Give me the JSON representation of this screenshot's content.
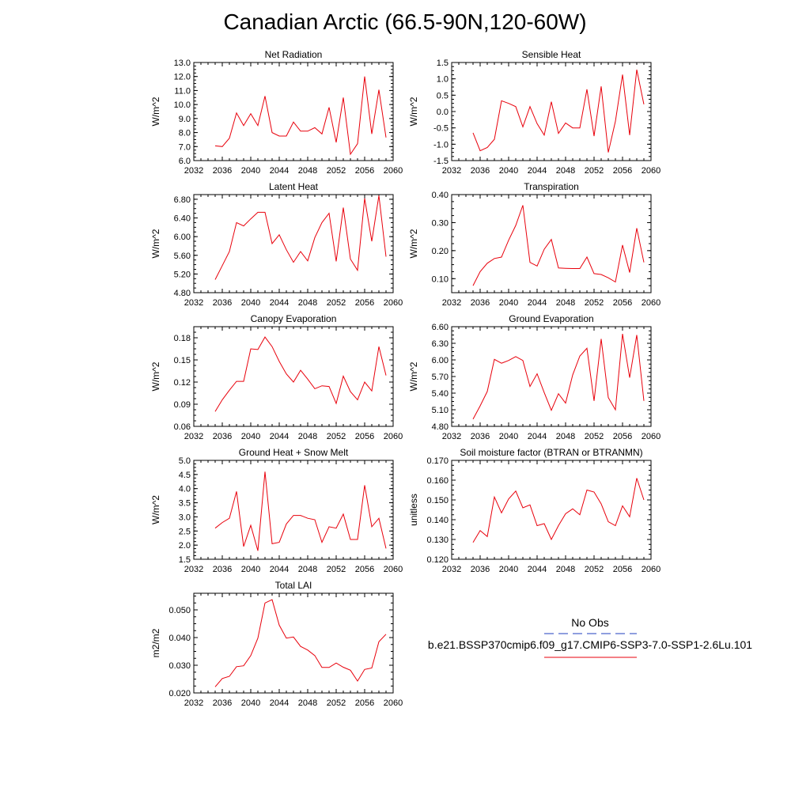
{
  "title": "Canadian Arctic (66.5-90N,120-60W)",
  "colors": {
    "series": "#e8000b",
    "obs": "#1f3fbf",
    "axis": "#000000"
  },
  "legend": {
    "obs_label": "No Obs",
    "model_label": "b.e21.BSSP370cmip6.f09_g17.CMIP6-SSP3-7.0-SSP1-2.6Lu.101"
  },
  "chart_data": [
    {
      "type": "line",
      "title": "Net Radiation",
      "ylabel": "W/m^2",
      "xlim": [
        2032,
        2060
      ],
      "ylim": [
        6.0,
        13.0
      ],
      "xticks": [
        "2032",
        "2036",
        "2040",
        "2044",
        "2048",
        "2052",
        "2056",
        "2060"
      ],
      "yticks": [
        "6.0",
        "7.0",
        "8.0",
        "9.0",
        "10.0",
        "11.0",
        "12.0",
        "13.0"
      ],
      "x": [
        2035,
        2036,
        2037,
        2038,
        2039,
        2040,
        2041,
        2042,
        2043,
        2044,
        2045,
        2046,
        2047,
        2048,
        2049,
        2050,
        2051,
        2052,
        2053,
        2054,
        2055,
        2056,
        2057,
        2058,
        2059
      ],
      "values": [
        7.05,
        7.0,
        7.6,
        9.4,
        8.5,
        9.35,
        8.5,
        10.6,
        8.0,
        7.75,
        7.75,
        8.75,
        8.1,
        8.1,
        8.35,
        7.9,
        9.8,
        7.3,
        10.5,
        6.45,
        7.2,
        12.0,
        7.9,
        11.05,
        7.65
      ]
    },
    {
      "type": "line",
      "title": "Sensible Heat",
      "ylabel": "W/m^2",
      "xlim": [
        2032,
        2060
      ],
      "ylim": [
        -1.5,
        1.5
      ],
      "xticks": [
        "2032",
        "2036",
        "2040",
        "2044",
        "2048",
        "2052",
        "2056",
        "2060"
      ],
      "yticks": [
        "-1.5",
        "-1.0",
        "-0.5",
        "0.0",
        "0.5",
        "1.0",
        "1.5"
      ],
      "x": [
        2035,
        2036,
        2037,
        2038,
        2039,
        2040,
        2041,
        2042,
        2043,
        2044,
        2045,
        2046,
        2047,
        2048,
        2049,
        2050,
        2051,
        2052,
        2053,
        2054,
        2055,
        2056,
        2057,
        2058,
        2059
      ],
      "values": [
        -0.65,
        -1.2,
        -1.1,
        -0.85,
        0.33,
        0.25,
        0.15,
        -0.47,
        0.15,
        -0.37,
        -0.72,
        0.3,
        -0.67,
        -0.35,
        -0.5,
        -0.5,
        0.68,
        -0.75,
        0.77,
        -1.25,
        -0.3,
        1.13,
        -0.72,
        1.28,
        0.22
      ]
    },
    {
      "type": "line",
      "title": "Latent Heat",
      "ylabel": "W/m^2",
      "xlim": [
        2032,
        2060
      ],
      "ylim": [
        4.8,
        6.9
      ],
      "xticks": [
        "2032",
        "2036",
        "2040",
        "2044",
        "2048",
        "2052",
        "2056",
        "2060"
      ],
      "yticks": [
        "4.80",
        "5.20",
        "5.60",
        "6.00",
        "6.40",
        "6.80"
      ],
      "x": [
        2035,
        2036,
        2037,
        2038,
        2039,
        2040,
        2041,
        2042,
        2043,
        2044,
        2045,
        2046,
        2047,
        2048,
        2049,
        2050,
        2051,
        2052,
        2053,
        2054,
        2055,
        2056,
        2057,
        2058,
        2059
      ],
      "values": [
        5.08,
        5.38,
        5.68,
        6.3,
        6.23,
        6.38,
        6.52,
        6.52,
        5.85,
        6.04,
        5.72,
        5.45,
        5.68,
        5.48,
        5.98,
        6.3,
        6.5,
        5.47,
        6.62,
        5.52,
        5.28,
        6.82,
        5.9,
        6.88,
        5.57
      ]
    },
    {
      "type": "line",
      "title": "Transpiration",
      "ylabel": "W/m^2",
      "xlim": [
        2032,
        2060
      ],
      "ylim": [
        0.05,
        0.4
      ],
      "xticks": [
        "2032",
        "2036",
        "2040",
        "2044",
        "2048",
        "2052",
        "2056",
        "2060"
      ],
      "yticks": [
        "0.10",
        "0.20",
        "0.30",
        "0.40"
      ],
      "x": [
        2035,
        2036,
        2037,
        2038,
        2039,
        2040,
        2041,
        2042,
        2043,
        2044,
        2045,
        2046,
        2047,
        2048,
        2049,
        2050,
        2051,
        2052,
        2053,
        2054,
        2055,
        2056,
        2057,
        2058,
        2059
      ],
      "values": [
        0.075,
        0.125,
        0.155,
        0.172,
        0.177,
        0.237,
        0.29,
        0.362,
        0.158,
        0.145,
        0.205,
        0.24,
        0.138,
        0.137,
        0.136,
        0.136,
        0.177,
        0.118,
        0.115,
        0.103,
        0.088,
        0.22,
        0.122,
        0.28,
        0.158
      ]
    },
    {
      "type": "line",
      "title": "Canopy Evaporation",
      "ylabel": "W/m^2",
      "xlim": [
        2032,
        2060
      ],
      "ylim": [
        0.06,
        0.195
      ],
      "xticks": [
        "2032",
        "2036",
        "2040",
        "2044",
        "2048",
        "2052",
        "2056",
        "2060"
      ],
      "yticks": [
        "0.06",
        "0.09",
        "0.12",
        "0.15",
        "0.18"
      ],
      "x": [
        2035,
        2036,
        2037,
        2038,
        2039,
        2040,
        2041,
        2042,
        2043,
        2044,
        2045,
        2046,
        2047,
        2048,
        2049,
        2050,
        2051,
        2052,
        2053,
        2054,
        2055,
        2056,
        2057,
        2058,
        2059
      ],
      "values": [
        0.08,
        0.096,
        0.109,
        0.121,
        0.121,
        0.165,
        0.164,
        0.181,
        0.168,
        0.148,
        0.131,
        0.12,
        0.136,
        0.124,
        0.111,
        0.115,
        0.114,
        0.091,
        0.128,
        0.107,
        0.096,
        0.12,
        0.108,
        0.168,
        0.129
      ]
    },
    {
      "type": "line",
      "title": "Ground Evaporation",
      "ylabel": "W/m^2",
      "xlim": [
        2032,
        2060
      ],
      "ylim": [
        4.8,
        6.6
      ],
      "xticks": [
        "2032",
        "2036",
        "2040",
        "2044",
        "2048",
        "2052",
        "2056",
        "2060"
      ],
      "yticks": [
        "4.80",
        "5.10",
        "5.40",
        "5.70",
        "6.00",
        "6.30",
        "6.60"
      ],
      "x": [
        2035,
        2036,
        2037,
        2038,
        2039,
        2040,
        2041,
        2042,
        2043,
        2044,
        2045,
        2046,
        2047,
        2048,
        2049,
        2050,
        2051,
        2052,
        2053,
        2054,
        2055,
        2056,
        2057,
        2058,
        2059
      ],
      "values": [
        4.93,
        5.17,
        5.43,
        6.01,
        5.94,
        5.99,
        6.06,
        5.99,
        5.52,
        5.75,
        5.41,
        5.09,
        5.39,
        5.22,
        5.73,
        6.07,
        6.21,
        5.26,
        6.38,
        5.32,
        5.1,
        6.47,
        5.68,
        6.45,
        5.26
      ]
    },
    {
      "type": "line",
      "title": "Ground Heat + Snow Melt",
      "ylabel": "W/m^2",
      "xlim": [
        2032,
        2060
      ],
      "ylim": [
        1.5,
        5.0
      ],
      "xticks": [
        "2032",
        "2036",
        "2040",
        "2044",
        "2048",
        "2052",
        "2056",
        "2060"
      ],
      "yticks": [
        "1.5",
        "2.0",
        "2.5",
        "3.0",
        "3.5",
        "4.0",
        "4.5",
        "5.0"
      ],
      "x": [
        2035,
        2036,
        2037,
        2038,
        2039,
        2040,
        2041,
        2042,
        2043,
        2044,
        2045,
        2046,
        2047,
        2048,
        2049,
        2050,
        2051,
        2052,
        2053,
        2054,
        2055,
        2056,
        2057,
        2058,
        2059
      ],
      "values": [
        2.6,
        2.8,
        2.95,
        3.9,
        1.95,
        2.7,
        1.8,
        4.6,
        2.05,
        2.1,
        2.75,
        3.05,
        3.05,
        2.95,
        2.9,
        2.1,
        2.65,
        2.6,
        3.1,
        2.2,
        2.2,
        4.12,
        2.65,
        2.95,
        1.88
      ]
    },
    {
      "type": "line",
      "title": "Soil moisture factor (BTRAN or BTRANMN)",
      "ylabel": "unitless",
      "xlim": [
        2032,
        2060
      ],
      "ylim": [
        0.12,
        0.17
      ],
      "xticks": [
        "2032",
        "2036",
        "2040",
        "2044",
        "2048",
        "2052",
        "2056",
        "2060"
      ],
      "yticks": [
        "0.120",
        "0.130",
        "0.140",
        "0.150",
        "0.160",
        "0.170"
      ],
      "x": [
        2035,
        2036,
        2037,
        2038,
        2039,
        2040,
        2041,
        2042,
        2043,
        2044,
        2045,
        2046,
        2047,
        2048,
        2049,
        2050,
        2051,
        2052,
        2053,
        2054,
        2055,
        2056,
        2057,
        2058,
        2059
      ],
      "values": [
        0.1285,
        0.1345,
        0.1315,
        0.1515,
        0.1435,
        0.1505,
        0.1545,
        0.146,
        0.1475,
        0.137,
        0.138,
        0.13,
        0.137,
        0.143,
        0.1455,
        0.1425,
        0.155,
        0.154,
        0.148,
        0.139,
        0.137,
        0.147,
        0.1415,
        0.161,
        0.15
      ]
    },
    {
      "type": "line",
      "title": "Total LAI",
      "ylabel": "m2/m2",
      "xlim": [
        2032,
        2060
      ],
      "ylim": [
        0.02,
        0.056
      ],
      "xticks": [
        "2032",
        "2036",
        "2040",
        "2044",
        "2048",
        "2052",
        "2056",
        "2060"
      ],
      "yticks": [
        "0.020",
        "0.030",
        "0.040",
        "0.050"
      ],
      "x": [
        2035,
        2036,
        2037,
        2038,
        2039,
        2040,
        2041,
        2042,
        2043,
        2044,
        2045,
        2046,
        2047,
        2048,
        2049,
        2050,
        2051,
        2052,
        2053,
        2054,
        2055,
        2056,
        2057,
        2058,
        2059
      ],
      "values": [
        0.0222,
        0.0252,
        0.026,
        0.0295,
        0.0298,
        0.0335,
        0.0398,
        0.0525,
        0.0537,
        0.0445,
        0.0398,
        0.0402,
        0.0368,
        0.0355,
        0.0335,
        0.0292,
        0.0292,
        0.0308,
        0.0293,
        0.0282,
        0.0243,
        0.0285,
        0.029,
        0.0385,
        0.0412
      ]
    }
  ]
}
